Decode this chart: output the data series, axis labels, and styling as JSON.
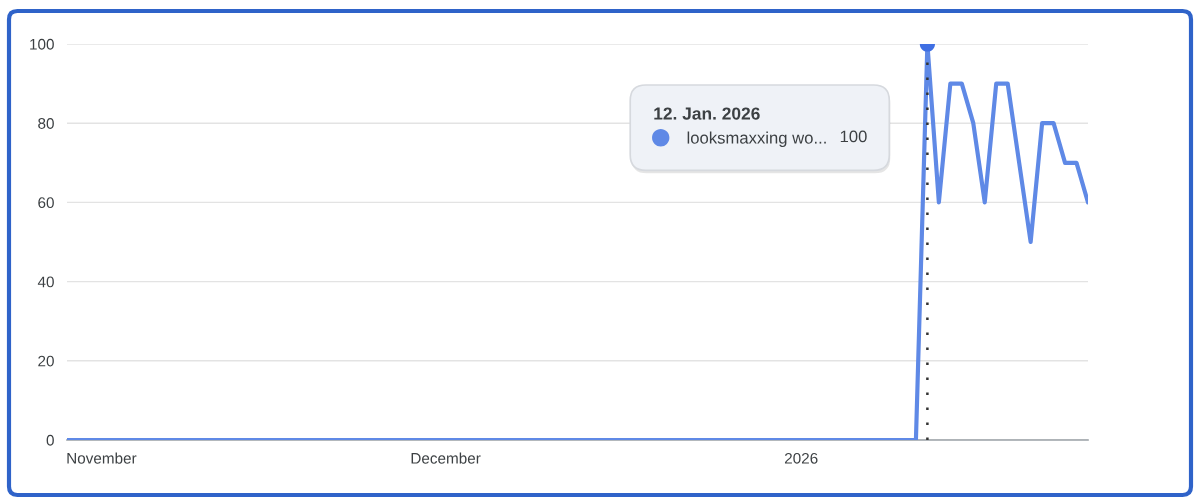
{
  "chart_data": {
    "type": "line",
    "series": [
      {
        "name": "looksmaxxing wo...",
        "color": "#5f89e6",
        "x": [
          "2025-10-29",
          "2025-10-30",
          "2025-10-31",
          "2025-11-01",
          "2025-11-02",
          "2025-11-03",
          "2025-11-04",
          "2025-11-05",
          "2025-11-06",
          "2025-11-07",
          "2025-11-08",
          "2025-11-09",
          "2025-11-10",
          "2025-11-11",
          "2025-11-12",
          "2025-11-13",
          "2025-11-14",
          "2025-11-15",
          "2025-11-16",
          "2025-11-17",
          "2025-11-18",
          "2025-11-19",
          "2025-11-20",
          "2025-11-21",
          "2025-11-22",
          "2025-11-23",
          "2025-11-24",
          "2025-11-25",
          "2025-11-26",
          "2025-11-27",
          "2025-11-28",
          "2025-11-29",
          "2025-11-30",
          "2025-12-01",
          "2025-12-02",
          "2025-12-03",
          "2025-12-04",
          "2025-12-05",
          "2025-12-06",
          "2025-12-07",
          "2025-12-08",
          "2025-12-09",
          "2025-12-10",
          "2025-12-11",
          "2025-12-12",
          "2025-12-13",
          "2025-12-14",
          "2025-12-15",
          "2025-12-16",
          "2025-12-17",
          "2025-12-18",
          "2025-12-19",
          "2025-12-20",
          "2025-12-21",
          "2025-12-22",
          "2025-12-23",
          "2025-12-24",
          "2025-12-25",
          "2025-12-26",
          "2025-12-27",
          "2025-12-28",
          "2025-12-29",
          "2025-12-30",
          "2025-12-31",
          "2026-01-01",
          "2026-01-02",
          "2026-01-03",
          "2026-01-04",
          "2026-01-05",
          "2026-01-06",
          "2026-01-07",
          "2026-01-08",
          "2026-01-09",
          "2026-01-10",
          "2026-01-11",
          "2026-01-12",
          "2026-01-13",
          "2026-01-14",
          "2026-01-15",
          "2026-01-16",
          "2026-01-17",
          "2026-01-18",
          "2026-01-19",
          "2026-01-20",
          "2026-01-21",
          "2026-01-22",
          "2026-01-23",
          "2026-01-24",
          "2026-01-25",
          "2026-01-26"
        ],
        "values": [
          0,
          0,
          0,
          0,
          0,
          0,
          0,
          0,
          0,
          0,
          0,
          0,
          0,
          0,
          0,
          0,
          0,
          0,
          0,
          0,
          0,
          0,
          0,
          0,
          0,
          0,
          0,
          0,
          0,
          0,
          0,
          0,
          0,
          0,
          0,
          0,
          0,
          0,
          0,
          0,
          0,
          0,
          0,
          0,
          0,
          0,
          0,
          0,
          0,
          0,
          0,
          0,
          0,
          0,
          0,
          0,
          0,
          0,
          0,
          0,
          0,
          0,
          0,
          0,
          0,
          0,
          0,
          0,
          0,
          0,
          0,
          0,
          0,
          0,
          0,
          100,
          60,
          90,
          90,
          80,
          60,
          90,
          90,
          70,
          50,
          80,
          80,
          70,
          70,
          60
        ]
      },
      {
        "type": "scatter",
        "color": "#3f6fe3",
        "marker": "circle",
        "x": [
          "2026-01-12"
        ],
        "values": [
          100
        ]
      }
    ],
    "xlim": [
      "2025-10-29",
      "2026-01-26"
    ],
    "xticks": [
      {
        "value": "2025-11-01",
        "label": "November"
      },
      {
        "value": "2025-12-01",
        "label": "December"
      },
      {
        "value": "2026-01-01",
        "label": "2026"
      }
    ],
    "ylim": [
      0,
      100
    ],
    "yticks": [
      0,
      20,
      40,
      60,
      80,
      100
    ],
    "grid": "y",
    "legend": "top",
    "legend_title": "12. Jan. 2026",
    "ref_lines": [
      {
        "axis": "x",
        "value": "2026-01-12",
        "color": "#333333",
        "line_style": "dotted"
      }
    ],
    "annotations": [
      "100"
    ]
  }
}
